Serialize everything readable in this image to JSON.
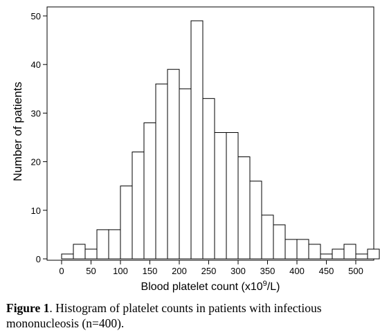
{
  "chart_data": {
    "type": "bar",
    "title": "",
    "xlabel": "Blood platelet count (x10⁹/L)",
    "xlabel_parts": {
      "main": "Blood platelet count (x10",
      "sup": "9",
      "tail": "/L)"
    },
    "ylabel": "Number of patients",
    "bin_width": 20,
    "bin_start": 0,
    "xlim": [
      -20,
      520
    ],
    "ylim": [
      0,
      50
    ],
    "x_ticks": [
      "0",
      "50",
      "100",
      "150",
      "200",
      "250",
      "300",
      "350",
      "400",
      "450",
      "500"
    ],
    "x_tick_values": [
      0,
      50,
      100,
      150,
      200,
      250,
      300,
      350,
      400,
      450,
      500
    ],
    "y_ticks": [
      "0",
      "10",
      "20",
      "30",
      "40",
      "50"
    ],
    "y_tick_values": [
      0,
      10,
      20,
      30,
      40,
      50
    ],
    "bins": [
      {
        "x0": 0,
        "x1": 20,
        "count": 1
      },
      {
        "x0": 20,
        "x1": 40,
        "count": 3
      },
      {
        "x0": 40,
        "x1": 60,
        "count": 2
      },
      {
        "x0": 60,
        "x1": 80,
        "count": 6
      },
      {
        "x0": 80,
        "x1": 100,
        "count": 6
      },
      {
        "x0": 100,
        "x1": 120,
        "count": 15
      },
      {
        "x0": 120,
        "x1": 140,
        "count": 22
      },
      {
        "x0": 140,
        "x1": 160,
        "count": 28
      },
      {
        "x0": 160,
        "x1": 180,
        "count": 36
      },
      {
        "x0": 180,
        "x1": 200,
        "count": 39
      },
      {
        "x0": 200,
        "x1": 220,
        "count": 35
      },
      {
        "x0": 220,
        "x1": 240,
        "count": 49
      },
      {
        "x0": 240,
        "x1": 260,
        "count": 33
      },
      {
        "x0": 260,
        "x1": 280,
        "count": 26
      },
      {
        "x0": 280,
        "x1": 300,
        "count": 26
      },
      {
        "x0": 300,
        "x1": 320,
        "count": 21
      },
      {
        "x0": 320,
        "x1": 340,
        "count": 16
      },
      {
        "x0": 340,
        "x1": 360,
        "count": 9
      },
      {
        "x0": 360,
        "x1": 380,
        "count": 7
      },
      {
        "x0": 380,
        "x1": 400,
        "count": 4
      },
      {
        "x0": 400,
        "x1": 420,
        "count": 4
      },
      {
        "x0": 420,
        "x1": 440,
        "count": 3
      },
      {
        "x0": 440,
        "x1": 460,
        "count": 1
      },
      {
        "x0": 460,
        "x1": 480,
        "count": 2
      },
      {
        "x0": 480,
        "x1": 500,
        "count": 3
      },
      {
        "x0": 500,
        "x1": 520,
        "count": 1
      },
      {
        "x0": 520,
        "x1": 540,
        "count": 2
      }
    ],
    "grid": false,
    "legend": "none",
    "bar_fill": "#ffffff",
    "bar_stroke": "#000000"
  },
  "caption": {
    "label": "Figure 1",
    "text": ". Histogram of platelet counts in patients with infectious mononucleosis (n=400)."
  }
}
